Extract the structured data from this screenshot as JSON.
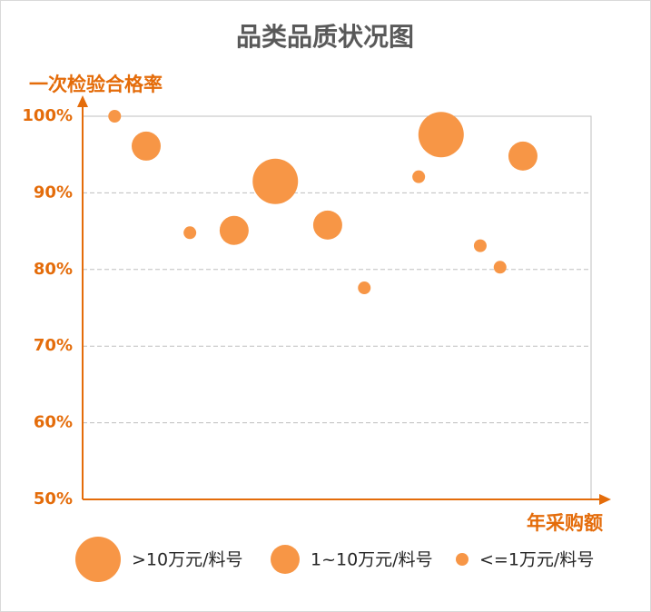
{
  "chart_data": {
    "type": "scatter",
    "title": "品类品质状况图",
    "y_label": "一次检验合格率",
    "x_label": "年采购额",
    "xlim": [
      0,
      100
    ],
    "ylim": [
      50,
      100
    ],
    "yticks": [
      {
        "value": 50,
        "label": "50%"
      },
      {
        "value": 60,
        "label": "60%"
      },
      {
        "value": 70,
        "label": "70%"
      },
      {
        "value": 80,
        "label": "80%"
      },
      {
        "value": 90,
        "label": "90%"
      },
      {
        "value": 100,
        "label": "100%"
      }
    ],
    "grid": true,
    "series": [
      {
        "name": ">10万元/料号",
        "color": "#f79646",
        "x": [
          37.9,
          70.5
        ],
        "values": [
          91.5,
          97.6
        ]
      },
      {
        "name": "1~10万元/料号",
        "color": "#f79646",
        "x": [
          12.5,
          29.8,
          48.2,
          86.6
        ],
        "values": [
          96.1,
          85.1,
          85.8,
          94.8
        ]
      },
      {
        "name": "<=1万元/料号",
        "color": "#f79646",
        "x": [
          6.3,
          21.1,
          55.4,
          66.1,
          78.2,
          82.1
        ],
        "values": [
          100,
          84.8,
          77.6,
          92.1,
          83.1,
          80.3
        ]
      }
    ]
  }
}
